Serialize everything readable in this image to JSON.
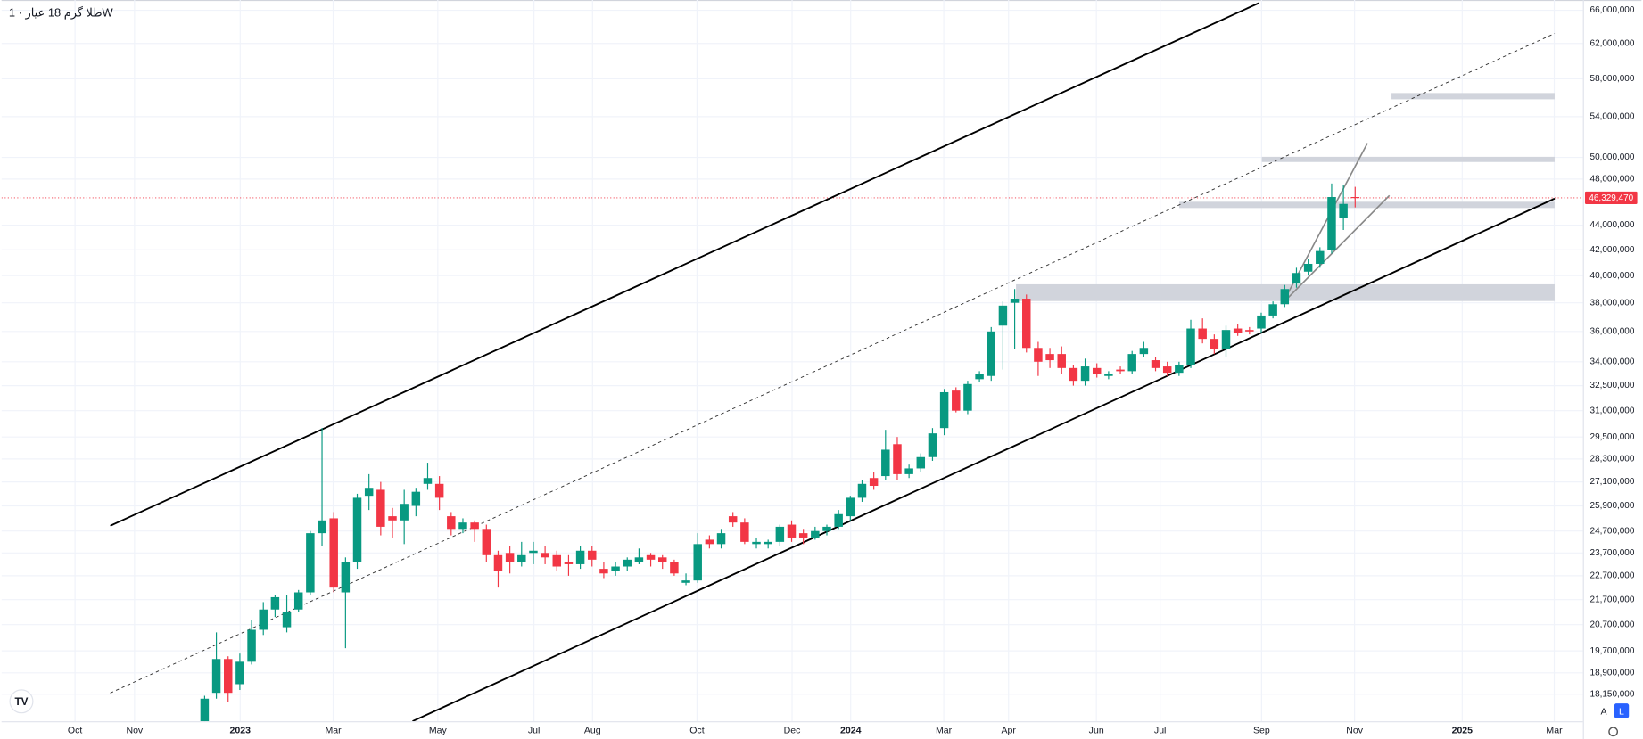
{
  "chart_data": {
    "type": "candlestick",
    "title": "طلا گرم 18 عیار · 1W",
    "log_scale": true,
    "grid": true,
    "up_color": "#089981",
    "down_color": "#f23645",
    "ylim": [
      17250000,
      67300000
    ],
    "yticks": [
      {
        "value": 66000000,
        "label": "66,000,000"
      },
      {
        "value": 62000000,
        "label": "62,000,000"
      },
      {
        "value": 58000000,
        "label": "58,000,000"
      },
      {
        "value": 54000000,
        "label": "54,000,000"
      },
      {
        "value": 50000000,
        "label": "50,000,000"
      },
      {
        "value": 48000000,
        "label": "48,000,000"
      },
      {
        "value": 44000000,
        "label": "44,000,000"
      },
      {
        "value": 42000000,
        "label": "42,000,000"
      },
      {
        "value": 40000000,
        "label": "40,000,000"
      },
      {
        "value": 38000000,
        "label": "38,000,000"
      },
      {
        "value": 36000000,
        "label": "36,000,000"
      },
      {
        "value": 34000000,
        "label": "34,000,000"
      },
      {
        "value": 32500000,
        "label": "32,500,000"
      },
      {
        "value": 31000000,
        "label": "31,000,000"
      },
      {
        "value": 29500000,
        "label": "29,500,000"
      },
      {
        "value": 28300000,
        "label": "28,300,000"
      },
      {
        "value": 27100000,
        "label": "27,100,000"
      },
      {
        "value": 25900000,
        "label": "25,900,000"
      },
      {
        "value": 24700000,
        "label": "24,700,000"
      },
      {
        "value": 23700000,
        "label": "23,700,000"
      },
      {
        "value": 22700000,
        "label": "22,700,000"
      },
      {
        "value": 21700000,
        "label": "21,700,000"
      },
      {
        "value": 20700000,
        "label": "20,700,000"
      },
      {
        "value": 19700000,
        "label": "19,700,000"
      },
      {
        "value": 18900000,
        "label": "18,900,000"
      },
      {
        "value": 18150000,
        "label": "18,150,000"
      }
    ],
    "last_price": {
      "value": 46329470,
      "label": "46,329,470"
    },
    "xlim": [
      -17.3,
      117.4
    ],
    "xticks": [
      {
        "value": -11.04,
        "label": "Oct"
      },
      {
        "value": -5.97,
        "label": "Nov"
      },
      {
        "value": 3.03,
        "label": "2023"
      },
      {
        "value": 10.95,
        "label": "Mar"
      },
      {
        "value": 19.86,
        "label": "May"
      },
      {
        "value": 28.05,
        "label": "Jul"
      },
      {
        "value": 33.04,
        "label": "Aug"
      },
      {
        "value": 41.94,
        "label": "Oct"
      },
      {
        "value": 50.04,
        "label": "Dec"
      },
      {
        "value": 55.03,
        "label": "2024"
      },
      {
        "value": 62.96,
        "label": "Mar"
      },
      {
        "value": 68.48,
        "label": "Apr"
      },
      {
        "value": 75.96,
        "label": "Jun"
      },
      {
        "value": 81.39,
        "label": "Jul"
      },
      {
        "value": 90.03,
        "label": "Sep"
      },
      {
        "value": 97.95,
        "label": "Nov"
      },
      {
        "value": 107.12,
        "label": "2025"
      },
      {
        "value": 114.96,
        "label": "Mar"
      }
    ],
    "open": [
      17000000,
      18200000,
      19400000,
      18500000,
      19300000,
      20500000,
      21300000,
      20600000,
      21300000,
      22000000,
      24600000,
      25300000,
      22000000,
      23300000,
      26400000,
      26700000,
      25400000,
      25200000,
      25900000,
      27000000,
      27000000,
      25400000,
      24800000,
      25100000,
      24800000,
      23600000,
      23700000,
      23300000,
      23700000,
      23700000,
      23600000,
      23300000,
      23200000,
      23800000,
      23000000,
      22900000,
      23100000,
      23300000,
      23600000,
      23500000,
      23300000,
      22400000,
      22500000,
      24300000,
      24100000,
      25400000,
      25100000,
      24100000,
      24100000,
      24200000,
      25000000,
      24600000,
      24400000,
      24700000,
      24900000,
      25400000,
      26300000,
      27300000,
      27400000,
      29100000,
      27500000,
      27800000,
      28400000,
      30000000,
      32200000,
      31000000,
      32900000,
      33100000,
      36400000,
      38000000,
      38300000,
      34900000,
      34500000,
      34500000,
      33600000,
      32800000,
      33600000,
      33100000,
      33500000,
      33400000,
      34500000,
      34100000,
      33700000,
      33300000,
      33800000,
      36200000,
      35500000,
      34800000,
      36200000,
      36100000,
      36200000,
      37100000,
      37900000,
      39400000,
      40300000,
      40900000,
      42000000,
      44600000,
      46400000
    ],
    "high": [
      18100000,
      20400000,
      19500000,
      19600000,
      20900000,
      21600000,
      21900000,
      21900000,
      22100000,
      24700000,
      30000000,
      25600000,
      23500000,
      26500000,
      27500000,
      27100000,
      25800000,
      26700000,
      26800000,
      28100000,
      27400000,
      25600000,
      25300000,
      25200000,
      25000000,
      23800000,
      24000000,
      24200000,
      24200000,
      24000000,
      23800000,
      23600000,
      24000000,
      24000000,
      23300000,
      23300000,
      23500000,
      23900000,
      23700000,
      23600000,
      23400000,
      22800000,
      24600000,
      24500000,
      24800000,
      25600000,
      25300000,
      24400000,
      24300000,
      25000000,
      25200000,
      24800000,
      24900000,
      25000000,
      25700000,
      26400000,
      27200000,
      27600000,
      29900000,
      29500000,
      28000000,
      28600000,
      30000000,
      32300000,
      32400000,
      32800000,
      33400000,
      36300000,
      38100000,
      39000000,
      38600000,
      35300000,
      34900000,
      35000000,
      33800000,
      34200000,
      33900000,
      33400000,
      33700000,
      34700000,
      35300000,
      34300000,
      34000000,
      34000000,
      36800000,
      36900000,
      35800000,
      36400000,
      36500000,
      36300000,
      37300000,
      38100000,
      39300000,
      40600000,
      41300000,
      42200000,
      47600000,
      47500000,
      47300000
    ],
    "low": [
      16800000,
      18000000,
      17900000,
      18300000,
      19200000,
      20300000,
      21000000,
      20400000,
      21200000,
      21900000,
      24000000,
      22000000,
      19800000,
      23000000,
      25700000,
      24500000,
      24400000,
      24100000,
      25400000,
      26700000,
      25700000,
      24500000,
      24600000,
      24200000,
      23300000,
      22200000,
      22800000,
      23100000,
      23200000,
      23200000,
      22900000,
      22700000,
      23000000,
      23100000,
      22600000,
      22700000,
      22900000,
      23200000,
      23100000,
      23000000,
      22700000,
      22300000,
      22400000,
      23900000,
      23900000,
      24900000,
      24100000,
      23900000,
      23900000,
      24000000,
      24200000,
      24100000,
      24300000,
      24500000,
      24800000,
      25200000,
      26100000,
      26700000,
      27200000,
      27200000,
      27300000,
      27600000,
      28200000,
      29600000,
      30900000,
      30800000,
      32700000,
      32800000,
      33500000,
      34800000,
      34600000,
      33100000,
      33600000,
      33200000,
      32500000,
      32500000,
      33000000,
      32900000,
      33200000,
      33200000,
      34300000,
      33400000,
      33100000,
      33100000,
      33600000,
      35200000,
      34500000,
      34300000,
      35700000,
      35800000,
      35900000,
      36900000,
      37700000,
      39100000,
      40000000,
      40600000,
      41700000,
      43600000,
      45500000
    ],
    "close": [
      18000000,
      19400000,
      18200000,
      19300000,
      20500000,
      21300000,
      21800000,
      21200000,
      22000000,
      24600000,
      25200000,
      22200000,
      23300000,
      26300000,
      26800000,
      24900000,
      25200000,
      26000000,
      26600000,
      27300000,
      26300000,
      24800000,
      25100000,
      24800000,
      23600000,
      22900000,
      23300000,
      23600000,
      23800000,
      23500000,
      23100000,
      23200000,
      23800000,
      23400000,
      22800000,
      23100000,
      23400000,
      23500000,
      23400000,
      23300000,
      22800000,
      22500000,
      24100000,
      24100000,
      24600000,
      25100000,
      24200000,
      24200000,
      24200000,
      24900000,
      24400000,
      24400000,
      24700000,
      24900000,
      25500000,
      26300000,
      27000000,
      26900000,
      28800000,
      27500000,
      27800000,
      28400000,
      29700000,
      32100000,
      31000000,
      32600000,
      33200000,
      36000000,
      37800000,
      38300000,
      34900000,
      34000000,
      34100000,
      33600000,
      32800000,
      33700000,
      33200000,
      33200000,
      33400000,
      34500000,
      34900000,
      33600000,
      33300000,
      33800000,
      36200000,
      35500000,
      34800000,
      36100000,
      35900000,
      36000000,
      37100000,
      37900000,
      39000000,
      40200000,
      40900000,
      41900000,
      46400000,
      45800000,
      46329470
    ]
  }
}
